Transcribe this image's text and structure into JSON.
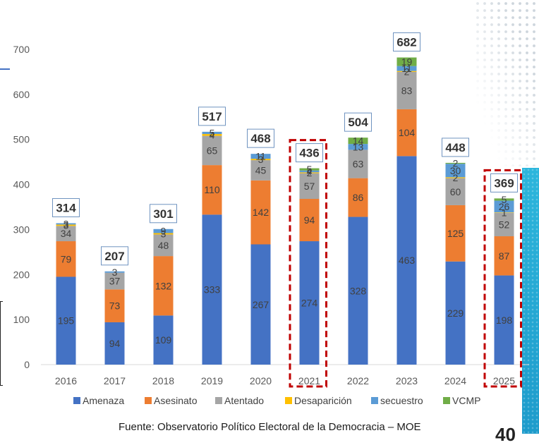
{
  "chart_data": {
    "type": "bar",
    "stacked": true,
    "categories": [
      "2016",
      "2017",
      "2018",
      "2019",
      "2020",
      "2021",
      "2022",
      "2023",
      "2024",
      "2025"
    ],
    "series": [
      {
        "name": "Amenaza",
        "color": "#4472C4",
        "values": [
          195,
          94,
          109,
          333,
          267,
          274,
          328,
          463,
          229,
          198
        ]
      },
      {
        "name": "Asesinato",
        "color": "#ED7D31",
        "values": [
          79,
          73,
          132,
          110,
          142,
          94,
          86,
          104,
          125,
          87
        ]
      },
      {
        "name": "Atentado",
        "color": "#A5A5A5",
        "values": [
          34,
          37,
          48,
          65,
          45,
          57,
          63,
          83,
          60,
          52
        ]
      },
      {
        "name": "Desaparición",
        "color": "#FFC000",
        "values": [
          3,
          0,
          3,
          4,
          3,
          2,
          0,
          2,
          2,
          1
        ]
      },
      {
        "name": "secuestro",
        "color": "#5B9BD5",
        "values": [
          3,
          3,
          9,
          5,
          11,
          4,
          13,
          11,
          30,
          26
        ]
      },
      {
        "name": "VCMP",
        "color": "#70AD47",
        "values": [
          0,
          0,
          0,
          0,
          0,
          5,
          14,
          19,
          2,
          5
        ]
      }
    ],
    "totals": [
      314,
      207,
      301,
      517,
      468,
      436,
      504,
      682,
      448,
      369
    ],
    "highlighted": [
      false,
      false,
      false,
      false,
      false,
      true,
      false,
      false,
      false,
      true
    ],
    "highlight_color": "#C00000",
    "yticks": [
      0,
      100,
      200,
      300,
      400,
      500,
      600,
      700
    ],
    "ylim": [
      0,
      700
    ],
    "grid": false,
    "legend": "bottom"
  },
  "footer": {
    "source": "Fuente: Observatorio Político Electoral de la Democracia – MOE",
    "page_number": "40"
  }
}
